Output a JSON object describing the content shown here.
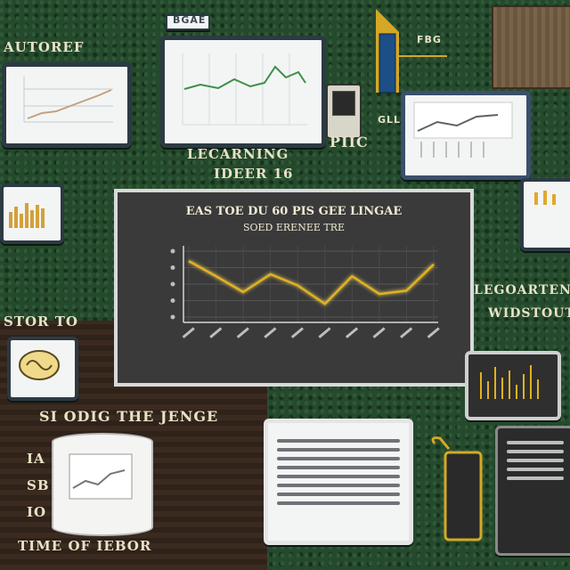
{
  "labels": {
    "top_left": "AUTOREF",
    "mid_header": "LECARNING",
    "mid_header_2": "IDEER 16",
    "top_small": "BGAE",
    "right_small": "FBG",
    "plc": "PIIC",
    "small_tag": "GLL",
    "right_mid": "LEGOARTENG",
    "right_mid_2": "WIDSTOUT",
    "left_mid": "STOR TO",
    "bottom_header": "SI ODIG THE JENGE",
    "bottom_left": "TIME OF IEBOR",
    "left_lower_1": "IA",
    "left_lower_2": "SB",
    "left_lower_3": "IO"
  },
  "main_chart": {
    "title": "EAS TOE DU 60 PIS GEE LINGAE",
    "subtitle": "SOED ERENEE TRE",
    "line_color": "#e0b21f"
  },
  "chart_data": {
    "type": "line",
    "title": "EAS TOE DU 60 PIS GEE LINGAE",
    "subtitle": "SOED ERENEE TRE",
    "x": [
      0,
      1,
      2,
      3,
      4,
      5,
      6,
      7,
      8,
      9
    ],
    "series": [
      {
        "values": [
          0.85,
          0.62,
          0.38,
          0.65,
          0.48,
          0.2,
          0.62,
          0.35,
          0.4,
          0.8
        ]
      }
    ],
    "ylim": [
      0,
      1
    ],
    "grid": true
  },
  "colors": {
    "board": "#25492d",
    "chart_bg": "#3a3a3a",
    "accent_gold": "#e0b21f",
    "frame": "#2c3a44"
  }
}
